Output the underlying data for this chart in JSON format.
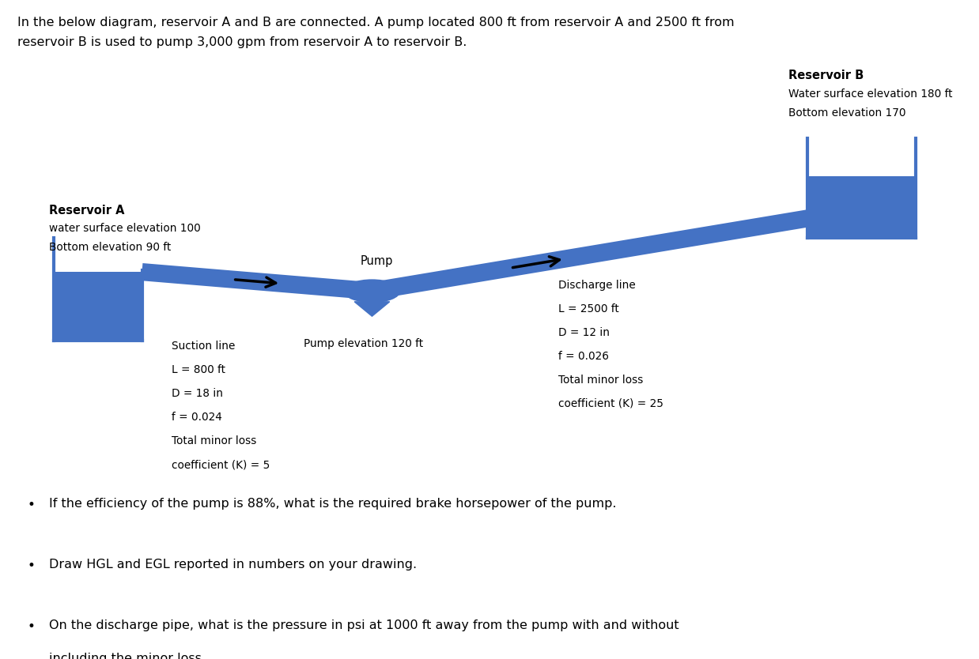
{
  "title_line1": "In the below diagram, reservoir A and B are connected. A pump located 800 ft from reservoir A and 2500 ft from",
  "title_line2": "reservoir B is used to pump 3,000 gpm from reservoir A to reservoir B.",
  "bg_color": "#ffffff",
  "pipe_color": "#4472C4",
  "reservoir_A_label": "Reservoir A",
  "reservoir_A_sub1": "water surface elevation 100",
  "reservoir_A_sub2": "Bottom elevation 90 ft",
  "reservoir_B_label": "Reservoir B",
  "reservoir_B_sub1": "Water surface elevation 180 ft",
  "reservoir_B_sub2": "Bottom elevation 170",
  "pump_label": "Pump",
  "pump_elevation_label": "Pump elevation 120 ft",
  "suction_lines": [
    "Suction line",
    "L = 800 ft",
    "D = 18 in",
    "f = 0.024",
    "Total minor loss",
    "coefficient (K) = 5"
  ],
  "discharge_lines": [
    "Discharge line",
    "L = 2500 ft",
    "D = 12 in",
    "f = 0.026",
    "Total minor loss",
    "coefficient (K) = 25"
  ],
  "bullet1": "If the efficiency of the pump is 88%, what is the required brake horsepower of the pump.",
  "bullet2": "Draw HGL and EGL reported in numbers on your drawing.",
  "bullet3a": "On the discharge pipe, what is the pressure in psi at 1000 ft away from the pump with and without",
  "bullet3b": "including the minor loss."
}
